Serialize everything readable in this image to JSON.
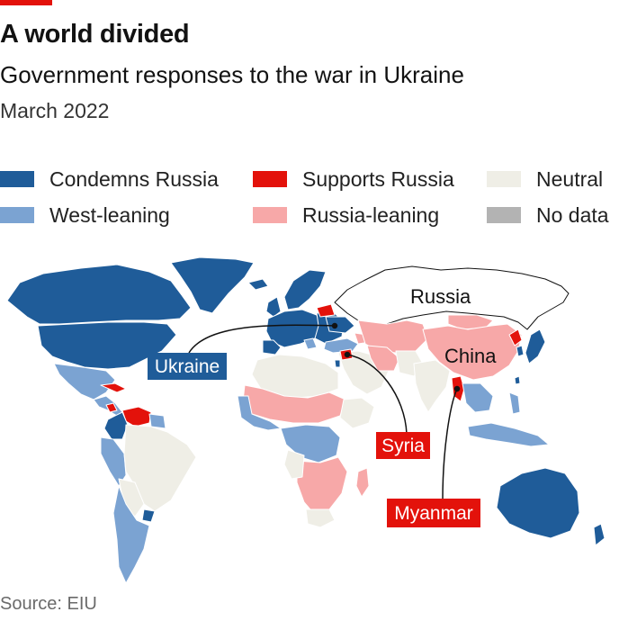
{
  "header": {
    "title": "A world divided",
    "subtitle": "Government responses to the war in Ukraine",
    "date": "March 2022"
  },
  "legend": [
    {
      "label": "Condemns Russia",
      "color": "#1f5c99"
    },
    {
      "label": "Supports Russia",
      "color": "#e3120b"
    },
    {
      "label": "Neutral",
      "color": "#efeee6"
    },
    {
      "label": "West-leaning",
      "color": "#7ba3d2"
    },
    {
      "label": "Russia-leaning",
      "color": "#f7a8a8"
    },
    {
      "label": "No data",
      "color": "#b3b3b3"
    }
  ],
  "map": {
    "labels": {
      "russia": "Russia",
      "china": "China",
      "ukraine": "Ukraine",
      "syria": "Syria",
      "myanmar": "Myanmar"
    },
    "colors": {
      "condemns": "#1f5c99",
      "west_leaning": "#7ba3d2",
      "supports": "#e3120b",
      "russia_leaning": "#f7a8a8",
      "neutral": "#efeee6",
      "no_data": "#b3b3b3",
      "russia_fill": "#ffffff"
    }
  },
  "footer": {
    "source": "Source: EIU"
  }
}
